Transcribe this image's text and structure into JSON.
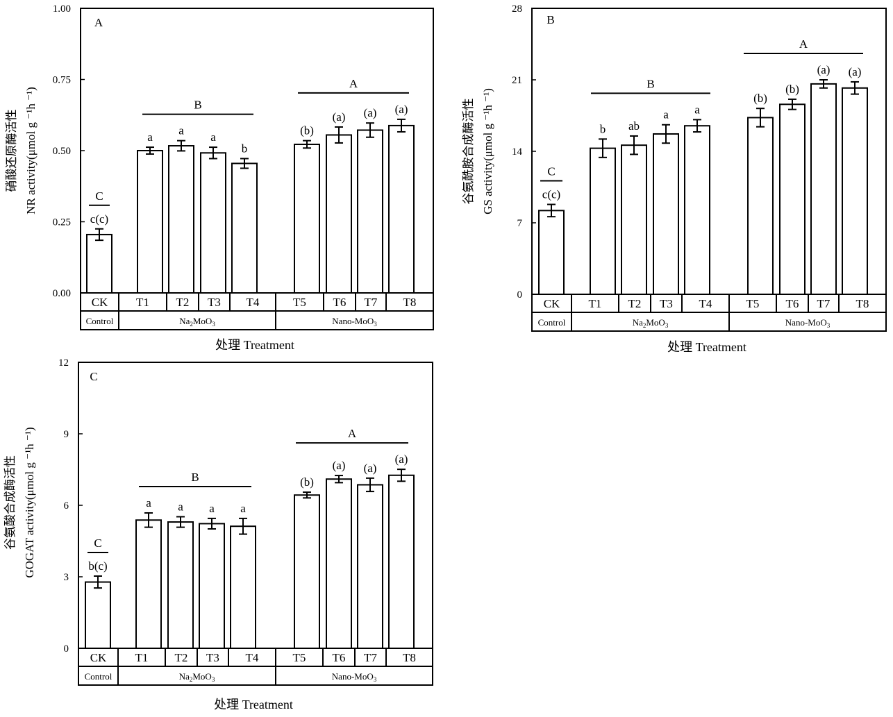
{
  "shared": {
    "treatment_labels": [
      "CK",
      "T1",
      "T2",
      "T3",
      "T4",
      "T5",
      "T6",
      "T7",
      "T8"
    ],
    "group_labels": [
      "Control",
      "Na2MoO3",
      "Nano-MoO3"
    ],
    "x_axis_title": "处理 Treatment"
  },
  "chart_data": [
    {
      "type": "bar",
      "panel_letter": "A",
      "ylabel_cn": "硝酸还原酶活性",
      "ylabel_en": "NR activity(μmol g ⁻¹h ⁻¹)",
      "ylim": [
        0,
        1
      ],
      "yticks": [
        "0.00",
        "0.25",
        "0.50",
        "0.75",
        "1.00"
      ],
      "categories": [
        "CK",
        "T1",
        "T2",
        "T3",
        "T4",
        "T5",
        "T6",
        "T7",
        "T8"
      ],
      "values": [
        0.205,
        0.5,
        0.517,
        0.492,
        0.455,
        0.522,
        0.555,
        0.572,
        0.588
      ],
      "errors": [
        0.02,
        0.012,
        0.018,
        0.02,
        0.017,
        0.013,
        0.028,
        0.025,
        0.022
      ],
      "letters": [
        "c(c)",
        "a",
        "a",
        "a",
        "b",
        "(b)",
        "(a)",
        "(a)",
        "(a)"
      ],
      "group_letters": [
        "C",
        "B",
        "A"
      ],
      "xlabel": "处理 Treatment"
    },
    {
      "type": "bar",
      "panel_letter": "B",
      "ylabel_cn": "谷氨酰胺合成酶活性",
      "ylabel_en": "GS activity(μmol g ⁻¹h ⁻¹)",
      "ylim": [
        0,
        28
      ],
      "yticks": [
        "0",
        "7",
        "14",
        "21",
        "28"
      ],
      "categories": [
        "CK",
        "T1",
        "T2",
        "T3",
        "T4",
        "T5",
        "T6",
        "T7",
        "T8"
      ],
      "values": [
        8.2,
        14.3,
        14.6,
        15.7,
        16.5,
        17.3,
        18.6,
        20.6,
        20.2
      ],
      "errors": [
        0.6,
        0.9,
        0.9,
        0.9,
        0.6,
        0.9,
        0.5,
        0.4,
        0.6
      ],
      "letters": [
        "c(c)",
        "b",
        "ab",
        "a",
        "a",
        "(b)",
        "(b)",
        "(a)",
        "(a)"
      ],
      "group_letters": [
        "C",
        "B",
        "A"
      ],
      "xlabel": "处理 Treatment"
    },
    {
      "type": "bar",
      "panel_letter": "C",
      "ylabel_cn": "谷氨酸合成酶活性",
      "ylabel_en": "GOGAT activity(μmol g ⁻¹h ⁻¹)",
      "ylim": [
        0,
        12
      ],
      "yticks": [
        "0",
        "3",
        "6",
        "9",
        "12"
      ],
      "categories": [
        "CK",
        "T1",
        "T2",
        "T3",
        "T4",
        "T5",
        "T6",
        "T7",
        "T8"
      ],
      "values": [
        2.78,
        5.38,
        5.3,
        5.23,
        5.12,
        6.43,
        7.1,
        6.86,
        7.26
      ],
      "errors": [
        0.25,
        0.3,
        0.22,
        0.22,
        0.33,
        0.12,
        0.15,
        0.28,
        0.25
      ],
      "letters": [
        "b(c)",
        "a",
        "a",
        "a",
        "a",
        "(b)",
        "(a)",
        "(a)",
        "(a)"
      ],
      "group_letters": [
        "C",
        "B",
        "A"
      ],
      "xlabel": "处理 Treatment"
    }
  ]
}
